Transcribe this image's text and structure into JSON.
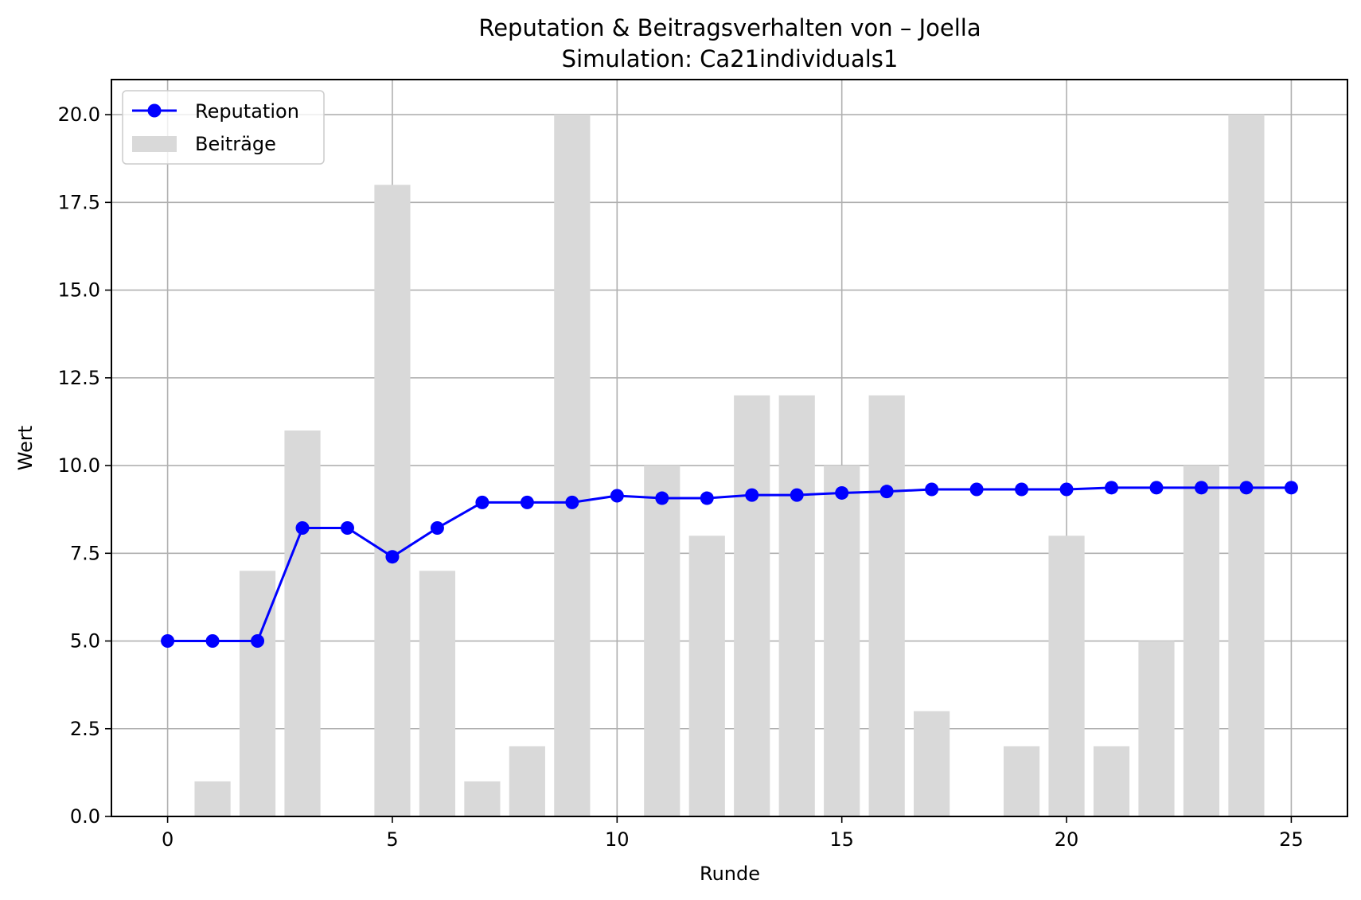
{
  "chart_data": {
    "type": "bar",
    "title": "Reputation & Beitragsverhalten von – Joella",
    "subtitle": "Simulation: Ca21individuals1",
    "xlabel": "Runde",
    "ylabel": "Wert",
    "xlim": [
      -1.25,
      26.25
    ],
    "ylim": [
      0,
      21
    ],
    "xticks": [
      0,
      5,
      10,
      15,
      20,
      25
    ],
    "xtick_labels": [
      "0",
      "5",
      "10",
      "15",
      "20",
      "25"
    ],
    "yticks": [
      0,
      2.5,
      5,
      7.5,
      10,
      12.5,
      15,
      17.5,
      20
    ],
    "ytick_labels": [
      "0.0",
      "2.5",
      "5.0",
      "7.5",
      "10.0",
      "12.5",
      "15.0",
      "17.5",
      "20.0"
    ],
    "grid": true,
    "legend_position": "upper-left",
    "series": [
      {
        "name": "Reputation",
        "kind": "line",
        "marker": "circle",
        "color": "#0000ff",
        "x": [
          0,
          1,
          2,
          3,
          4,
          5,
          6,
          7,
          8,
          9,
          10,
          11,
          12,
          13,
          14,
          15,
          16,
          17,
          18,
          19,
          20,
          21,
          22,
          23,
          24,
          25
        ],
        "values": [
          5.0,
          5.0,
          5.0,
          8.22,
          8.22,
          7.4,
          8.22,
          8.95,
          8.95,
          8.95,
          9.14,
          9.07,
          9.07,
          9.16,
          9.16,
          9.22,
          9.26,
          9.32,
          9.32,
          9.32,
          9.32,
          9.37,
          9.37,
          9.37,
          9.37,
          9.37
        ]
      },
      {
        "name": "Beiträge",
        "kind": "bar",
        "color": "#d9d9d9",
        "x": [
          0,
          1,
          2,
          3,
          4,
          5,
          6,
          7,
          8,
          9,
          10,
          11,
          12,
          13,
          14,
          15,
          16,
          17,
          18,
          19,
          20,
          21,
          22,
          23,
          24,
          25
        ],
        "values": [
          0,
          1,
          7,
          11,
          0,
          18,
          7,
          1,
          2,
          20,
          0,
          10,
          8,
          12,
          12,
          10,
          12,
          3,
          0,
          2,
          8,
          2,
          5,
          10,
          20,
          0
        ]
      }
    ]
  }
}
